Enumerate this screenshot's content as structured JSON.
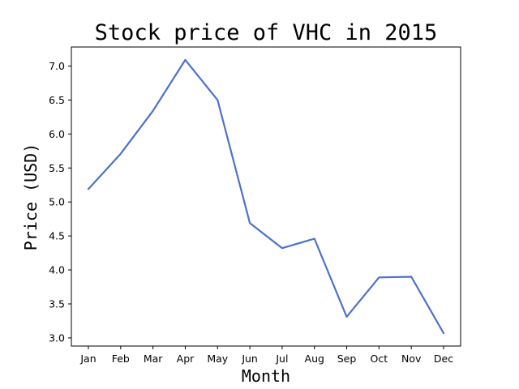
{
  "chart_data": {
    "type": "line",
    "title": "Stock price of VHC in 2015",
    "xlabel": "Month",
    "ylabel": "Price (USD)",
    "categories": [
      "Jan",
      "Feb",
      "Mar",
      "Apr",
      "May",
      "Jun",
      "Jul",
      "Aug",
      "Sep",
      "Oct",
      "Nov",
      "Dec"
    ],
    "series": [
      {
        "color": "#4c72c8",
        "values": [
          5.19,
          5.71,
          6.34,
          7.09,
          6.5,
          4.69,
          4.32,
          4.46,
          3.31,
          3.89,
          3.9,
          3.07
        ]
      }
    ],
    "ylim": [
      2.88,
      7.28
    ],
    "yticks": [
      3.0,
      3.5,
      4.0,
      4.5,
      5.0,
      5.5,
      6.0,
      6.5,
      7.0
    ],
    "ytick_labels": [
      "3.0",
      "3.5",
      "4.0",
      "4.5",
      "5.0",
      "5.5",
      "6.0",
      "6.5",
      "7.0"
    ],
    "grid": false,
    "legend": "none"
  }
}
